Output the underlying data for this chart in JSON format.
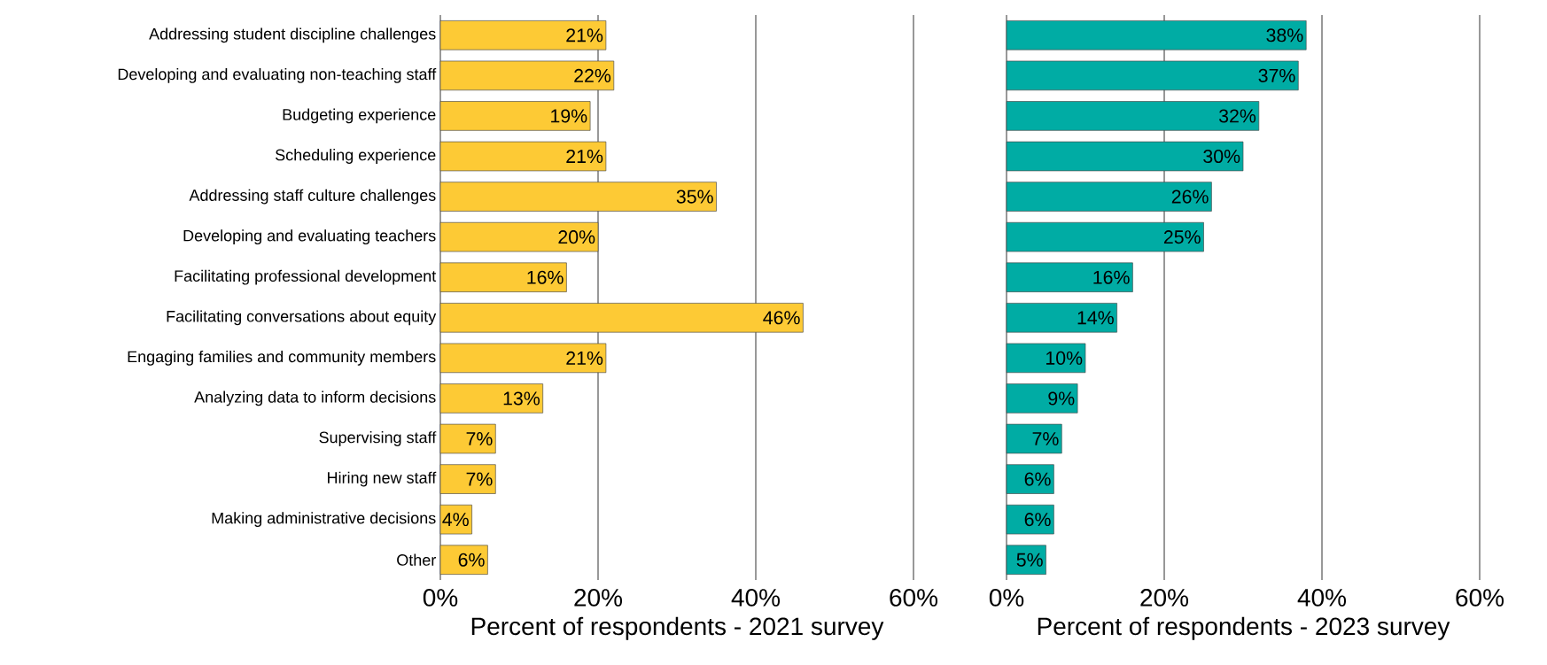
{
  "chart_data": [
    {
      "type": "bar",
      "orientation": "horizontal",
      "xlabel": "Percent of respondents - 2021 survey",
      "categories": [
        "Addressing student discipline challenges",
        "Developing and evaluating non-teaching staff",
        "Budgeting experience",
        "Scheduling experience",
        "Addressing staff culture challenges",
        "Developing and evaluating teachers",
        "Facilitating professional development",
        "Facilitating conversations about equity",
        "Engaging families and community members",
        "Analyzing data to inform decisions",
        "Supervising staff",
        "Hiring new staff",
        "Making administrative decisions",
        "Other"
      ],
      "values": [
        21,
        22,
        19,
        21,
        35,
        20,
        16,
        46,
        21,
        13,
        7,
        7,
        4,
        6
      ],
      "value_labels": [
        "21%",
        "22%",
        "19%",
        "21%",
        "35%",
        "20%",
        "16%",
        "46%",
        "21%",
        "13%",
        "7%",
        "7%",
        "4%",
        "6%"
      ],
      "color": "#fdca35",
      "xlim": [
        0,
        60
      ],
      "xticks": [
        {
          "value": 0,
          "label": "0%"
        },
        {
          "value": 20,
          "label": "20%"
        },
        {
          "value": 40,
          "label": "40%"
        },
        {
          "value": 60,
          "label": "60%"
        }
      ],
      "grid": "x"
    },
    {
      "type": "bar",
      "orientation": "horizontal",
      "xlabel": "Percent of respondents - 2023 survey",
      "categories": [
        null,
        null,
        null,
        null,
        null,
        null,
        null,
        null,
        null,
        null,
        null,
        null,
        null,
        null
      ],
      "values": [
        38,
        37,
        32,
        30,
        26,
        25,
        16,
        14,
        10,
        9,
        7,
        6,
        6,
        5
      ],
      "value_labels": [
        "38%",
        "37%",
        "32%",
        "30%",
        "26%",
        "25%",
        "16%",
        "14%",
        "10%",
        "9%",
        "7%",
        "6%",
        "6%",
        "5%"
      ],
      "color": "#00aca4",
      "xlim": [
        0,
        60
      ],
      "xticks": [
        {
          "value": 0,
          "label": "0%"
        },
        {
          "value": 20,
          "label": "20%"
        },
        {
          "value": 40,
          "label": "40%"
        },
        {
          "value": 60,
          "label": "60%"
        }
      ],
      "grid": "x"
    }
  ]
}
